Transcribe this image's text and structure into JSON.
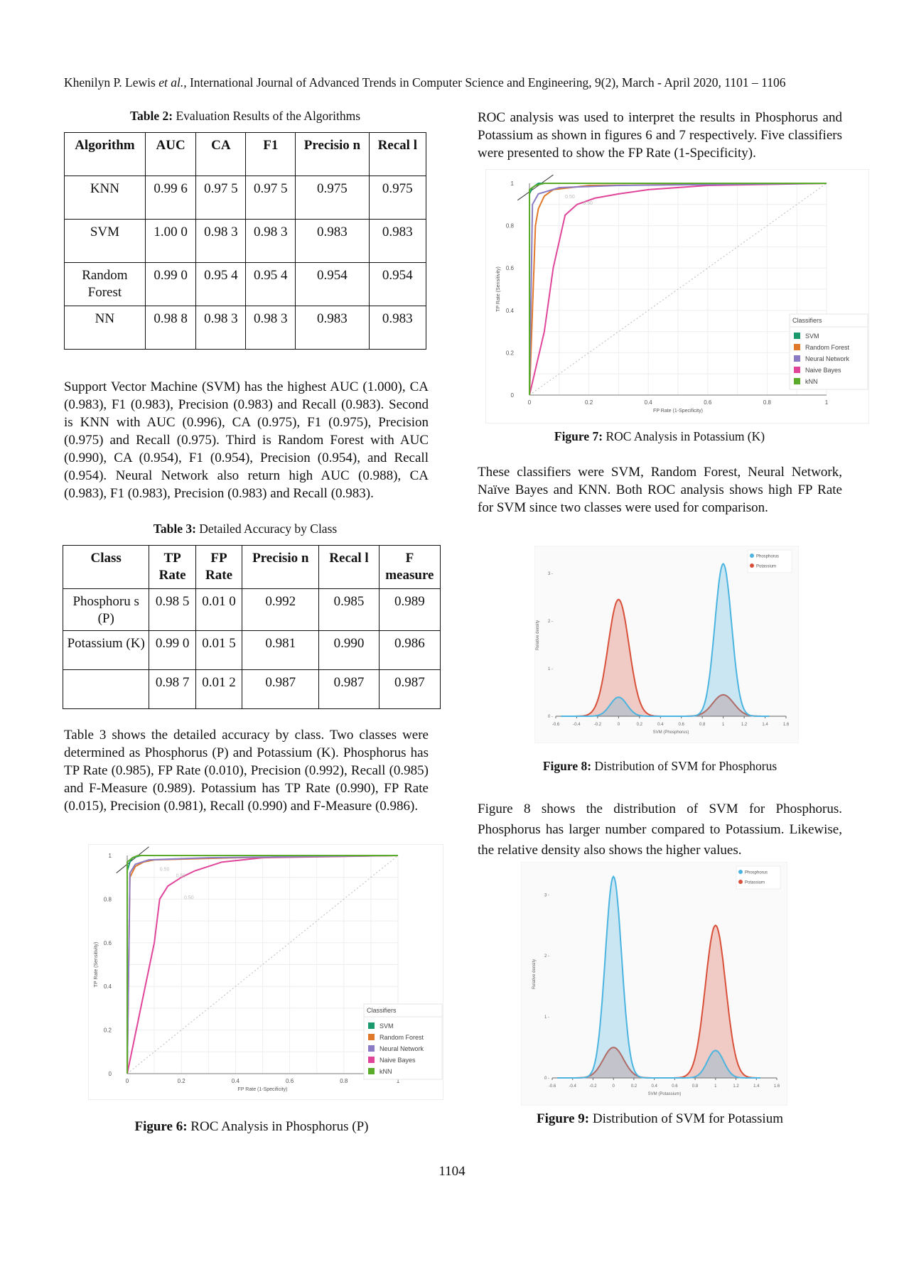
{
  "header": "Khenilyn P. Lewis et al., International Journal of Advanced Trends in Computer Science and Engineering, 9(2), March - April 2020, 1101 – 1106",
  "header_parts": {
    "authors": "Khenilyn P. Lewis ",
    "etal": "et al.,",
    "journal": " International Journal of Advanced Trends in Computer Science and Engineering, 9(2), March - April 2020, 1101 – 1106"
  },
  "table2": {
    "caption_label": "Table 2:",
    "caption_text": " Evaluation Results of the Algorithms",
    "headers": [
      "Algorithm",
      "AUC",
      "CA",
      "F1",
      "Precisio n",
      "Recal l"
    ],
    "rows": [
      [
        "KNN",
        "0.99 6",
        "0.97 5",
        "0.97 5",
        "0.975",
        "0.975"
      ],
      [
        "SVM",
        "1.00 0",
        "0.98 3",
        "0.98 3",
        "0.983",
        "0.983"
      ],
      [
        "Random Forest",
        "0.99 0",
        "0.95 4",
        "0.95 4",
        "0.954",
        "0.954"
      ],
      [
        "NN",
        "0.98 8",
        "0.98 3",
        "0.98 3",
        "0.983",
        "0.983"
      ]
    ]
  },
  "para_svm": "Support Vector Machine (SVM) has the highest AUC (1.000), CA (0.983), F1 (0.983), Precision (0.983) and Recall (0.983). Second is KNN with AUC (0.996), CA (0.975), F1 (0.975), Precision (0.975) and Recall (0.975). Third is Random Forest with AUC (0.990), CA (0.954), F1 (0.954), Precision (0.954), and Recall (0.954). Neural Network also return high AUC (0.988), CA (0.983), F1 (0.983), Precision (0.983) and Recall (0.983).",
  "table3": {
    "caption_label": "Table 3:",
    "caption_text": " Detailed Accuracy by Class",
    "headers": [
      "Class",
      "TP Rate",
      "FP Rate",
      "Precisio n",
      "Recal l",
      "F measure"
    ],
    "rows": [
      [
        "Phosphoru s (P)",
        "0.98 5",
        "0.01 0",
        "0.992",
        "0.985",
        "0.989"
      ],
      [
        "Potassium (K)",
        "0.99 0",
        "0.01 5",
        "0.981",
        "0.990",
        "0.986"
      ],
      [
        "",
        "0.98 7",
        "0.01 2",
        "0.987",
        "0.987",
        "0.987"
      ]
    ]
  },
  "para_table3": "Table 3 shows the detailed accuracy by class. Two classes were determined as Phosphorus (P) and Potassium (K). Phosphorus has TP Rate (0.985), FP Rate (0.010), Precision (0.992), Recall (0.985) and F-Measure (0.989). Potassium has TP Rate (0.990), FP Rate (0.015), Precision (0.981), Recall (0.990) and F-Measure (0.986).",
  "para_roc": "ROC analysis was used to interpret the results in Phosphorus and Potassium as shown in figures 6 and 7 respectively. Five classifiers were presented to show the FP Rate (1-Specificity).",
  "para_classifiers": "These classifiers were SVM, Random Forest, Neural Network, Naïve Bayes and KNN. Both ROC analysis shows high FP Rate for SVM since two classes were used for comparison.",
  "para_fig8": "Figure 8 shows the distribution of SVM for Phosphorus. Phosphorus has larger number compared to Potassium. Likewise, the relative density also shows the higher values.",
  "fig6": {
    "label": "Figure 6:",
    "text": " ROC Analysis in Phosphorus (P)"
  },
  "fig7": {
    "label": "Figure 7:",
    "text": " ROC Analysis in Potassium (K)"
  },
  "fig8": {
    "label": "Figure 8:",
    "text": " Distribution of SVM for Phosphorus"
  },
  "fig9": {
    "label": "Figure 9:",
    "text": " Distribution of SVM for Potassium"
  },
  "page_number": "1104",
  "chart_data": [
    {
      "id": "fig6",
      "type": "line",
      "xlabel": "FP Rate (1-Specificity)",
      "ylabel": "TP Rate (Sensitivity)",
      "xlim": [
        0,
        1
      ],
      "ylim": [
        0,
        1
      ],
      "x_ticks": [
        "0",
        "0.2",
        "0.4",
        "0.6",
        "0.8",
        "1"
      ],
      "y_ticks": [
        "0",
        "0.2",
        "0.4",
        "0.6",
        "0.8",
        "1"
      ],
      "point_labels": [
        "0.50",
        "0.50",
        "0.50"
      ],
      "legend_title": "Classifiers",
      "legend_position": "right",
      "series": [
        {
          "name": "SVM",
          "color": "#1a9a6c",
          "points": [
            [
              0,
              0
            ],
            [
              0,
              0.93
            ],
            [
              0.01,
              0.97
            ],
            [
              0.02,
              0.99
            ],
            [
              0.05,
              1.0
            ],
            [
              1,
              1
            ]
          ]
        },
        {
          "name": "Random Forest",
          "color": "#e0782a",
          "points": [
            [
              0,
              0
            ],
            [
              0.01,
              0.9
            ],
            [
              0.03,
              0.95
            ],
            [
              0.06,
              0.97
            ],
            [
              0.1,
              0.98
            ],
            [
              0.4,
              0.99
            ],
            [
              1,
              1
            ]
          ]
        },
        {
          "name": "Neural Network",
          "color": "#8a7bc4",
          "points": [
            [
              0,
              0
            ],
            [
              0.01,
              0.92
            ],
            [
              0.03,
              0.96
            ],
            [
              0.08,
              0.98
            ],
            [
              0.3,
              0.99
            ],
            [
              1,
              1
            ]
          ]
        },
        {
          "name": "Naive Bayes",
          "color": "#e0459a",
          "points": [
            [
              0,
              0
            ],
            [
              0.05,
              0.3
            ],
            [
              0.1,
              0.6
            ],
            [
              0.12,
              0.8
            ],
            [
              0.15,
              0.86
            ],
            [
              0.2,
              0.9
            ],
            [
              0.25,
              0.93
            ],
            [
              0.35,
              0.97
            ],
            [
              0.5,
              0.99
            ],
            [
              1,
              1
            ]
          ]
        },
        {
          "name": "kNN",
          "color": "#5aab2a",
          "points": [
            [
              0,
              0
            ],
            [
              0,
              0.97
            ],
            [
              0.02,
              0.99
            ],
            [
              0.04,
              1.0
            ],
            [
              1,
              1
            ]
          ]
        }
      ]
    },
    {
      "id": "fig7",
      "type": "line",
      "xlabel": "FP Rate (1-Specificity)",
      "ylabel": "TP Rate (Sensitivity)",
      "xlim": [
        0,
        1
      ],
      "ylim": [
        0,
        1
      ],
      "x_ticks": [
        "0",
        "0.2",
        "0.4",
        "0.6",
        "0.8",
        "1"
      ],
      "y_ticks": [
        "0",
        "0.2",
        "0.4",
        "0.6",
        "0.8",
        "1"
      ],
      "point_labels": [
        "0.50",
        "0.50"
      ],
      "legend_title": "Classifiers",
      "legend_position": "right",
      "series": [
        {
          "name": "SVM",
          "color": "#1a9a6c",
          "points": [
            [
              0,
              0
            ],
            [
              0,
              0.95
            ],
            [
              0.01,
              0.98
            ],
            [
              0.03,
              1.0
            ],
            [
              1,
              1
            ]
          ]
        },
        {
          "name": "Random Forest",
          "color": "#e0782a",
          "points": [
            [
              0,
              0
            ],
            [
              0.02,
              0.8
            ],
            [
              0.03,
              0.88
            ],
            [
              0.05,
              0.94
            ],
            [
              0.08,
              0.97
            ],
            [
              0.2,
              0.99
            ],
            [
              1,
              1
            ]
          ]
        },
        {
          "name": "Neural Network",
          "color": "#8a7bc4",
          "points": [
            [
              0,
              0
            ],
            [
              0.01,
              0.9
            ],
            [
              0.03,
              0.95
            ],
            [
              0.1,
              0.98
            ],
            [
              0.3,
              0.99
            ],
            [
              1,
              1
            ]
          ]
        },
        {
          "name": "Naive Bayes",
          "color": "#e0459a",
          "points": [
            [
              0,
              0
            ],
            [
              0.05,
              0.3
            ],
            [
              0.08,
              0.6
            ],
            [
              0.12,
              0.85
            ],
            [
              0.16,
              0.9
            ],
            [
              0.22,
              0.93
            ],
            [
              0.3,
              0.95
            ],
            [
              0.4,
              0.97
            ],
            [
              0.6,
              0.99
            ],
            [
              1,
              1
            ]
          ]
        },
        {
          "name": "kNN",
          "color": "#5aab2a",
          "points": [
            [
              0,
              0
            ],
            [
              0,
              0.97
            ],
            [
              0.02,
              0.99
            ],
            [
              0.05,
              1.0
            ],
            [
              1,
              1
            ]
          ]
        }
      ]
    },
    {
      "id": "fig8",
      "type": "area",
      "xlabel": "SVM (Phosphorus)",
      "ylabel": "Relative density",
      "xlim": [
        -0.6,
        1.6
      ],
      "ylim": [
        0,
        3.4
      ],
      "x_ticks": [
        "-0.6",
        "-0.4",
        "-0.2",
        "0",
        "0.2",
        "0.4",
        "0.6",
        "0.8",
        "1",
        "1.2",
        "1.4",
        "1.6"
      ],
      "y_ticks": [
        "0",
        "1",
        "2",
        "3"
      ],
      "legend_position": "top-right",
      "series": [
        {
          "name": "Phosphorus",
          "color": "#4bb4e0",
          "peaks": [
            {
              "mu": 0,
              "sigma": 0.08,
              "height": 0.4
            },
            {
              "mu": 1,
              "sigma": 0.08,
              "height": 3.2
            }
          ]
        },
        {
          "name": "Potassium",
          "color": "#d9503a",
          "peaks": [
            {
              "mu": 0,
              "sigma": 0.1,
              "height": 2.45
            },
            {
              "mu": 1,
              "sigma": 0.1,
              "height": 0.45
            }
          ]
        }
      ]
    },
    {
      "id": "fig9",
      "type": "area",
      "xlabel": "SVM (Potassium)",
      "ylabel": "Relative density",
      "xlim": [
        -0.6,
        1.6
      ],
      "ylim": [
        0,
        3.4
      ],
      "x_ticks": [
        "-0.6",
        "-0.4",
        "-0.2",
        "0",
        "0.2",
        "0.4",
        "0.6",
        "0.8",
        "1",
        "1.2",
        "1.4",
        "1.6"
      ],
      "y_ticks": [
        "0",
        "1",
        "2",
        "3"
      ],
      "legend_position": "top-right",
      "series": [
        {
          "name": "Phosphorus",
          "color": "#4bb4e0",
          "peaks": [
            {
              "mu": 0,
              "sigma": 0.08,
              "height": 3.3
            },
            {
              "mu": 1,
              "sigma": 0.08,
              "height": 0.45
            }
          ]
        },
        {
          "name": "Potassium",
          "color": "#d9503a",
          "peaks": [
            {
              "mu": 0,
              "sigma": 0.1,
              "height": 0.5
            },
            {
              "mu": 1,
              "sigma": 0.1,
              "height": 2.5
            }
          ]
        }
      ]
    }
  ]
}
